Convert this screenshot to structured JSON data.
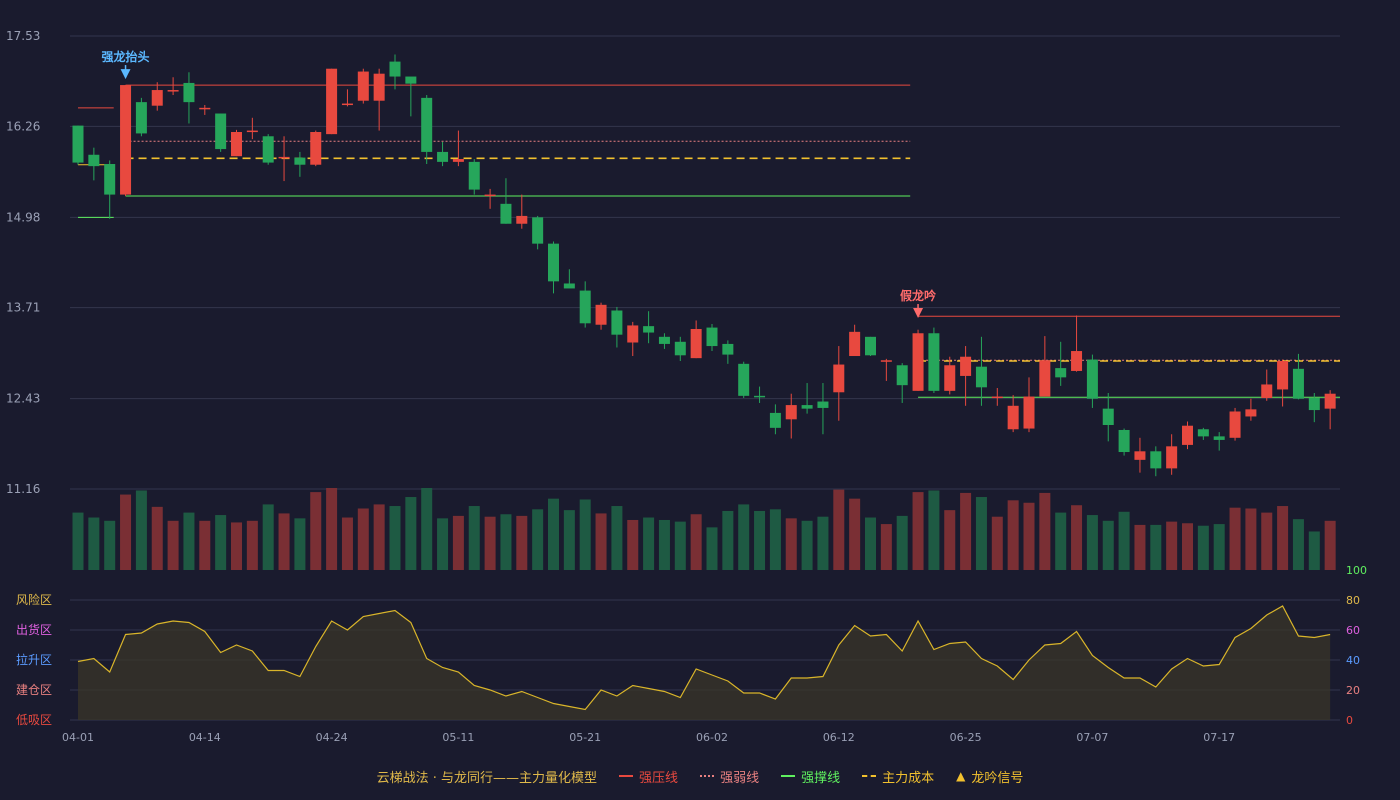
{
  "colors": {
    "bg": "#1a1b2e",
    "grid": "#33364d",
    "up": "#e8493f",
    "down": "#26a65b",
    "vol_up": "#7a2f34",
    "vol_down": "#1e5a43",
    "strong_pressure": "#e8493f",
    "weak": "#e88080",
    "support": "#5ff05f",
    "cost": "#f2c12e",
    "signal_up": "#5bb8ff",
    "signal_down": "#ff6b6b",
    "osc_line": "#d9b52a",
    "osc_fill": "#3a3528",
    "axis_text": "#9aa0b5"
  },
  "main_axis": {
    "ticks": [
      "17.53",
      "16.26",
      "14.98",
      "13.71",
      "12.43",
      "11.16"
    ],
    "ylim": [
      11.16,
      17.53
    ]
  },
  "x_axis": {
    "labels": [
      {
        "i": 0,
        "text": "04-01"
      },
      {
        "i": 8,
        "text": "04-14"
      },
      {
        "i": 16,
        "text": "04-24"
      },
      {
        "i": 24,
        "text": "05-11"
      },
      {
        "i": 32,
        "text": "05-21"
      },
      {
        "i": 40,
        "text": "06-02"
      },
      {
        "i": 48,
        "text": "06-12"
      },
      {
        "i": 56,
        "text": "06-25"
      },
      {
        "i": 64,
        "text": "07-07"
      },
      {
        "i": 72,
        "text": "07-17"
      }
    ]
  },
  "osc_axis": {
    "right_ticks": [
      "100",
      "80",
      "60",
      "40",
      "20",
      "0"
    ],
    "right_tick_colors": [
      "#5ff05f",
      "#e0b94a",
      "#e060e0",
      "#5b9bff",
      "#e88080",
      "#e8493f"
    ],
    "zones": [
      {
        "label": "风险区",
        "color": "#e0b94a",
        "value": 80
      },
      {
        "label": "出货区",
        "color": "#e060e0",
        "value": 60
      },
      {
        "label": "拉升区",
        "color": "#5b9bff",
        "value": 40
      },
      {
        "label": "建仓区",
        "color": "#e88080",
        "value": 20
      },
      {
        "label": "低吸区",
        "color": "#e8493f",
        "value": 0
      }
    ]
  },
  "signals": [
    {
      "label": "强龙抬头",
      "i": 3,
      "price": 16.84,
      "kind": "up"
    },
    {
      "label": "假龙吟",
      "i": 53,
      "price": 13.48,
      "kind": "down"
    }
  ],
  "legend": {
    "title": "云梯战法 · 与龙同行——主力量化模型",
    "items": [
      {
        "label": "强压线",
        "style": "solid",
        "color": "#e8493f"
      },
      {
        "label": "强弱线",
        "style": "dot",
        "color": "#e88080"
      },
      {
        "label": "强撑线",
        "style": "solid",
        "color": "#5ff05f"
      },
      {
        "label": "主力成本",
        "style": "dash",
        "color": "#f2c12e"
      },
      {
        "label": "龙吟信号",
        "style": "triangle",
        "color": "#f2c12e"
      }
    ]
  },
  "chart_data": {
    "type": "candlestick",
    "ylim": [
      11.16,
      17.53
    ],
    "candles": [
      [
        16.27,
        15.75,
        16.27,
        15.72
      ],
      [
        15.86,
        15.7,
        15.96,
        15.5
      ],
      [
        15.73,
        15.3,
        15.78,
        14.96
      ],
      [
        15.3,
        16.84,
        16.84,
        15.28
      ],
      [
        16.6,
        16.16,
        16.66,
        16.12
      ],
      [
        16.55,
        16.77,
        16.88,
        16.48
      ],
      [
        16.77,
        16.77,
        16.95,
        16.7
      ],
      [
        16.87,
        16.6,
        17.02,
        16.3
      ],
      [
        16.52,
        16.52,
        16.56,
        16.42
      ],
      [
        16.44,
        15.94,
        16.44,
        15.9
      ],
      [
        15.84,
        16.18,
        16.21,
        15.84
      ],
      [
        16.2,
        16.2,
        16.38,
        16.08
      ],
      [
        16.12,
        15.75,
        16.15,
        15.72
      ],
      [
        15.83,
        15.83,
        16.12,
        15.49
      ],
      [
        15.82,
        15.72,
        15.9,
        15.55
      ],
      [
        15.72,
        16.18,
        16.2,
        15.7
      ],
      [
        16.15,
        17.07,
        17.07,
        16.15
      ],
      [
        16.58,
        16.58,
        16.78,
        16.54
      ],
      [
        16.62,
        17.03,
        17.07,
        16.58
      ],
      [
        16.62,
        17.0,
        17.07,
        16.2
      ],
      [
        17.17,
        16.96,
        17.27,
        16.78
      ],
      [
        16.96,
        16.86,
        16.9,
        16.4
      ],
      [
        16.66,
        15.9,
        16.7,
        15.73
      ],
      [
        15.9,
        15.76,
        16.04,
        15.7
      ],
      [
        15.76,
        15.8,
        16.2,
        15.7
      ],
      [
        15.76,
        15.37,
        15.8,
        15.3
      ],
      [
        15.3,
        15.3,
        15.38,
        15.1
      ],
      [
        15.17,
        14.89,
        15.53,
        14.89
      ],
      [
        14.89,
        15.0,
        15.3,
        14.82
      ],
      [
        14.98,
        14.61,
        15.0,
        14.53
      ],
      [
        14.61,
        14.08,
        14.64,
        13.91
      ],
      [
        14.05,
        13.98,
        14.25,
        13.99
      ],
      [
        13.95,
        13.49,
        14.08,
        13.43
      ],
      [
        13.47,
        13.75,
        13.78,
        13.4
      ],
      [
        13.67,
        13.33,
        13.72,
        13.15
      ],
      [
        13.22,
        13.46,
        13.51,
        13.03
      ],
      [
        13.45,
        13.36,
        13.66,
        13.21
      ],
      [
        13.3,
        13.2,
        13.35,
        13.13
      ],
      [
        13.23,
        13.04,
        13.3,
        12.96
      ],
      [
        13.0,
        13.41,
        13.53,
        13.0
      ],
      [
        13.43,
        13.17,
        13.48,
        13.1
      ],
      [
        13.2,
        13.05,
        13.25,
        12.92
      ],
      [
        12.92,
        12.47,
        12.95,
        12.44
      ],
      [
        12.47,
        12.46,
        12.6,
        12.37
      ],
      [
        12.23,
        12.02,
        12.35,
        11.93
      ],
      [
        12.14,
        12.34,
        12.5,
        11.87
      ],
      [
        12.34,
        12.29,
        12.65,
        12.22
      ],
      [
        12.39,
        12.3,
        12.65,
        11.93
      ],
      [
        12.52,
        12.91,
        13.17,
        12.12
      ],
      [
        13.03,
        13.37,
        13.47,
        13.03
      ],
      [
        13.3,
        13.04,
        13.3,
        13.03
      ],
      [
        12.97,
        12.97,
        12.99,
        12.68
      ],
      [
        12.9,
        12.62,
        12.93,
        12.37
      ],
      [
        12.54,
        13.35,
        13.4,
        12.54
      ],
      [
        13.35,
        12.54,
        13.43,
        12.51
      ],
      [
        12.54,
        12.9,
        13.02,
        12.49
      ],
      [
        12.75,
        13.02,
        13.17,
        12.33
      ],
      [
        12.88,
        12.59,
        13.3,
        12.33
      ],
      [
        12.44,
        12.46,
        12.58,
        12.33
      ],
      [
        12.0,
        12.33,
        12.48,
        11.96
      ],
      [
        12.01,
        12.46,
        12.73,
        11.96
      ],
      [
        12.46,
        12.97,
        13.31,
        12.46
      ],
      [
        12.86,
        12.73,
        13.23,
        12.61
      ],
      [
        12.82,
        13.1,
        13.6,
        12.81
      ],
      [
        12.98,
        12.43,
        13.05,
        12.3
      ],
      [
        12.29,
        12.06,
        12.51,
        11.83
      ],
      [
        11.99,
        11.68,
        12.01,
        11.63
      ],
      [
        11.57,
        11.69,
        11.88,
        11.39
      ],
      [
        11.69,
        11.45,
        11.76,
        11.34
      ],
      [
        11.45,
        11.76,
        11.93,
        11.36
      ],
      [
        11.78,
        12.05,
        12.11,
        11.72
      ],
      [
        12.0,
        11.9,
        12.02,
        11.85
      ],
      [
        11.9,
        11.85,
        11.96,
        11.7
      ],
      [
        11.88,
        12.25,
        12.3,
        11.84
      ],
      [
        12.18,
        12.28,
        12.43,
        12.12
      ],
      [
        12.44,
        12.63,
        12.84,
        12.4
      ],
      [
        12.56,
        12.96,
        12.98,
        12.32
      ],
      [
        12.85,
        12.43,
        13.06,
        12.42
      ],
      [
        12.44,
        12.27,
        12.51,
        12.1
      ],
      [
        12.29,
        12.5,
        12.55,
        12.0
      ]
    ],
    "volume": [
      70,
      64,
      60,
      92,
      97,
      77,
      60,
      70,
      60,
      67,
      58,
      60,
      80,
      69,
      63,
      95,
      100,
      64,
      75,
      80,
      78,
      89,
      100,
      63,
      66,
      78,
      65,
      68,
      66,
      74,
      87,
      73,
      86,
      69,
      78,
      61,
      64,
      61,
      59,
      68,
      52,
      72,
      80,
      72,
      74,
      63,
      60,
      65,
      98,
      87,
      64,
      56,
      66,
      95,
      97,
      73,
      94,
      89,
      65,
      85,
      82,
      94,
      70,
      79,
      67,
      60,
      71,
      55,
      55,
      59,
      57,
      54,
      56,
      76,
      75,
      70,
      78,
      62,
      47,
      60
    ],
    "oscillator": [
      39,
      41,
      32,
      57,
      58,
      64,
      66,
      65,
      59,
      45,
      50,
      46,
      33,
      33,
      29,
      49,
      66,
      60,
      69,
      71,
      73,
      65,
      41,
      35,
      32,
      23,
      20,
      16,
      19,
      15,
      11,
      9,
      7,
      20,
      16,
      23,
      21,
      19,
      15,
      34,
      30,
      26,
      18,
      18,
      14,
      28,
      28,
      29,
      50,
      63,
      56,
      57,
      46,
      66,
      47,
      51,
      52,
      41,
      36,
      27,
      40,
      50,
      51,
      59,
      43,
      35,
      28,
      28,
      22,
      34,
      41,
      36,
      37,
      55,
      61,
      70,
      76,
      56,
      55,
      57
    ],
    "levels": [
      {
        "name": "强压线",
        "value": 16.84,
        "from": 3,
        "to": 52
      },
      {
        "name": "强弱线",
        "value": 16.05,
        "from": 3,
        "to": 52
      },
      {
        "name": "主力成本",
        "value": 15.81,
        "from": 3,
        "to": 52
      },
      {
        "name": "强撑线",
        "value": 15.28,
        "from": 3,
        "to": 52
      },
      {
        "name": "强压线",
        "value": 13.59,
        "from": 53,
        "to": 79
      },
      {
        "name": "强弱线",
        "value": 12.97,
        "from": 53,
        "to": 79
      },
      {
        "name": "主力成本",
        "value": 12.96,
        "from": 53,
        "to": 79
      },
      {
        "name": "强撑线",
        "value": 12.45,
        "from": 53,
        "to": 79
      }
    ],
    "pre_levels": [
      {
        "name": "强压线",
        "value": 16.52,
        "from": 0,
        "to": 2
      },
      {
        "name": "强撑线",
        "value": 14.98,
        "from": 0,
        "to": 2
      },
      {
        "name": "主力成本",
        "value": 15.72,
        "from": 0,
        "to": 2
      }
    ]
  }
}
